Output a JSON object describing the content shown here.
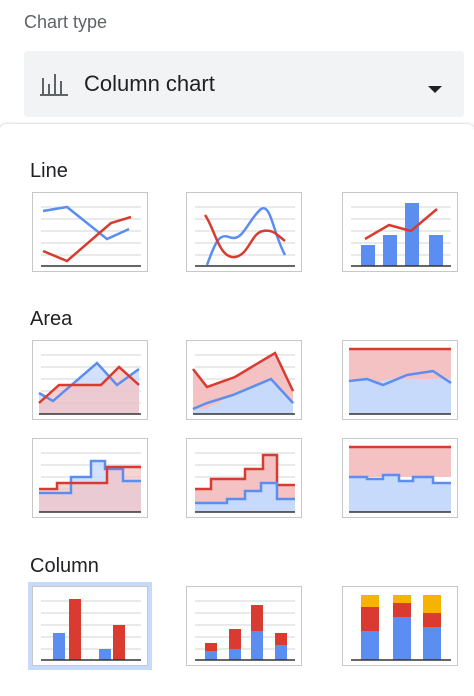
{
  "header": {
    "label": "Chart type"
  },
  "dropdown": {
    "icon": "bar-chart-icon",
    "selected": "Column chart",
    "caret": "dropdown-arrow-icon"
  },
  "sections": [
    {
      "title": "Line",
      "thumbnails": [
        "line-chart",
        "smooth-line-chart",
        "combo-chart"
      ]
    },
    {
      "title": "Area",
      "thumbnails": [
        "area-chart",
        "stacked-area-chart",
        "100-percent-stacked-area-chart",
        "stepped-area-chart",
        "stacked-stepped-area-chart",
        "100-percent-stacked-stepped-area-chart"
      ]
    },
    {
      "title": "Column",
      "thumbnails": [
        "column-chart",
        "stacked-column-chart",
        "100-percent-stacked-column-chart"
      ],
      "selected": "column-chart"
    }
  ],
  "colors": {
    "blue": "#5b8ef0",
    "red": "#d93b30",
    "yellow": "#f6b400",
    "blueFill": "#c8dafc",
    "redFill": "#f4c2c2",
    "selection": "#c6dafc"
  }
}
